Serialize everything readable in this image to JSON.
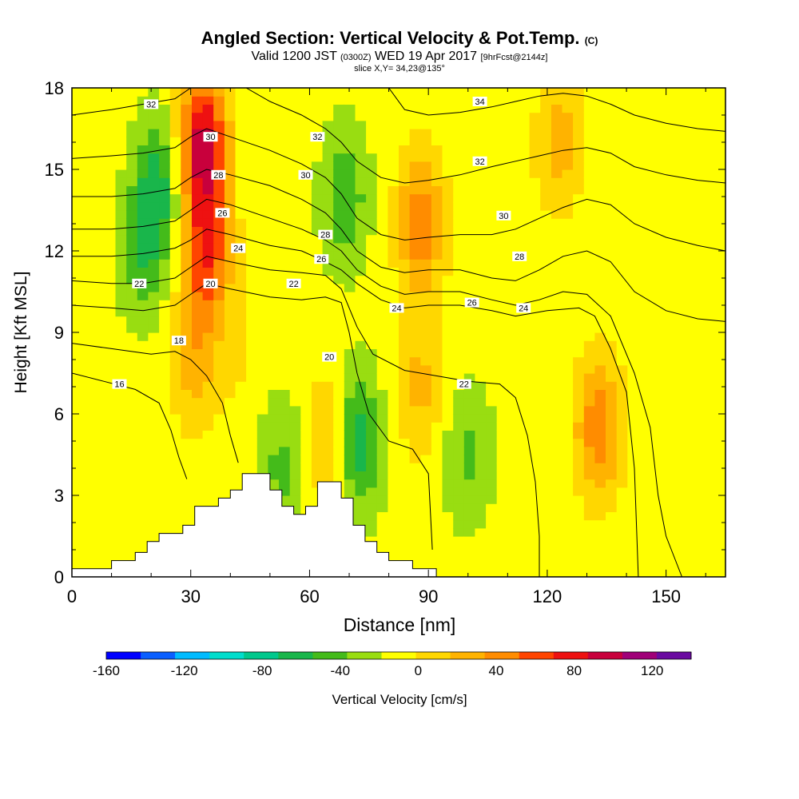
{
  "header": {
    "title": "Angled Section: Vertical Velocity & Pot.Temp.",
    "copyright": "(C)",
    "valid_prefix": "Valid 1200 JST",
    "valid_zulu": "(0300Z)",
    "valid_date": "WED 19 Apr 2017",
    "forecast": "[9hrFcst@2144z]",
    "slice": "slice X,Y= 34,23@135°"
  },
  "chart_data": {
    "type": "heatmap",
    "xlabel": "Distance [nm]",
    "ylabel": "Height [Kft MSL]",
    "xlim": [
      0,
      165
    ],
    "ylim": [
      0,
      18
    ],
    "x_ticks": [
      "0",
      "30",
      "60",
      "90",
      "120",
      "150"
    ],
    "x_tick_values": [
      0,
      30,
      60,
      90,
      120,
      150
    ],
    "y_ticks": [
      "0",
      "3",
      "6",
      "9",
      "12",
      "15",
      "18"
    ],
    "y_tick_values": [
      0,
      3,
      6,
      9,
      12,
      15,
      18
    ],
    "colorbar": {
      "label": "Vertical Velocity [cm/s]",
      "tick_labels": [
        "-160",
        "-120",
        "-80",
        "-40",
        "0",
        "40",
        "80",
        "120"
      ],
      "tick_values": [
        -160,
        -120,
        -80,
        -40,
        0,
        40,
        80,
        120
      ],
      "min": -160,
      "max": 140,
      "step": 20,
      "colors": [
        "#0000ff",
        "#0a5fff",
        "#00bbff",
        "#00ddcc",
        "#00c88c",
        "#19b64b",
        "#44bb1a",
        "#99dd11",
        "#ffff00",
        "#ffd700",
        "#ffb300",
        "#ff8c00",
        "#ff4500",
        "#ee1111",
        "#c8003c",
        "#a00078",
        "#6a0aa0"
      ]
    },
    "velocity_features": [
      {
        "x": 100,
        "y": 4.5,
        "value": -25
      },
      {
        "x": 18,
        "y": 12,
        "value": -35
      },
      {
        "x": 22,
        "y": 14.5,
        "value": -45
      },
      {
        "x": 69,
        "y": 14,
        "value": -35
      },
      {
        "x": 72,
        "y": 5,
        "value": -55
      },
      {
        "x": 53,
        "y": 4,
        "value": -25
      },
      {
        "x": 34,
        "y": 12,
        "value": 95
      },
      {
        "x": 33,
        "y": 16,
        "value": 130
      },
      {
        "x": 31,
        "y": 8,
        "value": 50
      },
      {
        "x": 88,
        "y": 13,
        "value": 75
      },
      {
        "x": 88,
        "y": 7,
        "value": 45
      },
      {
        "x": 133,
        "y": 5.5,
        "value": 75
      },
      {
        "x": 123,
        "y": 16,
        "value": 50
      },
      {
        "x": 65,
        "y": 5,
        "value": 45
      },
      {
        "x": 42,
        "y": 8,
        "value": 20
      },
      {
        "x": 8,
        "y": 2.5,
        "value": 5
      }
    ],
    "terrain": [
      [
        0,
        0.3
      ],
      [
        10,
        0.3
      ],
      [
        10,
        0.6
      ],
      [
        16,
        0.6
      ],
      [
        16,
        0.9
      ],
      [
        19,
        0.9
      ],
      [
        19,
        1.3
      ],
      [
        22,
        1.3
      ],
      [
        22,
        1.6
      ],
      [
        28,
        1.6
      ],
      [
        28,
        1.9
      ],
      [
        31,
        1.9
      ],
      [
        31,
        2.6
      ],
      [
        37,
        2.6
      ],
      [
        37,
        2.9
      ],
      [
        40,
        2.9
      ],
      [
        40,
        3.2
      ],
      [
        43,
        3.2
      ],
      [
        43,
        3.8
      ],
      [
        50,
        3.8
      ],
      [
        50,
        3.2
      ],
      [
        53,
        3.2
      ],
      [
        53,
        2.6
      ],
      [
        56,
        2.6
      ],
      [
        56,
        2.3
      ],
      [
        59,
        2.3
      ],
      [
        59,
        2.6
      ],
      [
        62,
        2.6
      ],
      [
        62,
        3.5
      ],
      [
        68,
        3.5
      ],
      [
        68,
        2.9
      ],
      [
        71,
        2.9
      ],
      [
        71,
        1.9
      ],
      [
        74,
        1.9
      ],
      [
        74,
        1.3
      ],
      [
        77,
        1.3
      ],
      [
        77,
        0.9
      ],
      [
        80,
        0.9
      ],
      [
        80,
        0.6
      ],
      [
        86,
        0.6
      ],
      [
        86,
        0.3
      ],
      [
        92,
        0.3
      ]
    ],
    "isentropes": [
      {
        "label": "16",
        "points": [
          [
            0,
            7.5
          ],
          [
            8,
            7.2
          ],
          [
            16,
            6.9
          ],
          [
            22,
            6.4
          ],
          [
            25,
            5.4
          ],
          [
            27,
            4.4
          ],
          [
            29,
            3.6
          ]
        ]
      },
      {
        "label": "18",
        "points": [
          [
            0,
            8.6
          ],
          [
            10,
            8.4
          ],
          [
            20,
            8.2
          ],
          [
            26,
            8.3
          ],
          [
            30,
            8.0
          ],
          [
            34,
            7.4
          ],
          [
            38,
            6.4
          ],
          [
            40,
            5.2
          ],
          [
            42,
            4.2
          ]
        ]
      },
      {
        "label": "20",
        "points": [
          [
            0,
            10.0
          ],
          [
            10,
            9.9
          ],
          [
            18,
            9.8
          ],
          [
            26,
            10.0
          ],
          [
            30,
            10.4
          ],
          [
            34,
            10.8
          ],
          [
            40,
            10.6
          ],
          [
            50,
            10.3
          ],
          [
            58,
            10.2
          ],
          [
            64,
            10.3
          ],
          [
            68,
            10.1
          ],
          [
            70,
            9.0
          ],
          [
            72,
            7.5
          ],
          [
            75,
            6.0
          ],
          [
            80,
            5.0
          ],
          [
            86,
            4.7
          ],
          [
            90,
            3.8
          ],
          [
            91,
            1.0
          ]
        ]
      },
      {
        "label": "22",
        "points": [
          [
            0,
            10.9
          ],
          [
            10,
            10.8
          ],
          [
            18,
            10.8
          ],
          [
            26,
            11.0
          ],
          [
            30,
            11.4
          ],
          [
            34,
            11.8
          ],
          [
            40,
            11.6
          ],
          [
            50,
            11.3
          ],
          [
            58,
            11.2
          ],
          [
            64,
            11.1
          ],
          [
            68,
            10.6
          ],
          [
            72,
            9.2
          ],
          [
            76,
            8.2
          ],
          [
            84,
            7.6
          ],
          [
            92,
            7.4
          ],
          [
            100,
            7.2
          ],
          [
            108,
            7.1
          ],
          [
            112,
            6.6
          ],
          [
            115,
            5.2
          ],
          [
            117,
            3.5
          ],
          [
            118,
            1.5
          ],
          [
            118,
            0.0
          ]
        ]
      },
      {
        "label": "24",
        "points": [
          [
            0,
            11.8
          ],
          [
            10,
            11.8
          ],
          [
            18,
            11.9
          ],
          [
            26,
            12.1
          ],
          [
            30,
            12.4
          ],
          [
            34,
            12.8
          ],
          [
            40,
            12.6
          ],
          [
            50,
            12.2
          ],
          [
            58,
            12.0
          ],
          [
            64,
            11.6
          ],
          [
            68,
            11.3
          ],
          [
            72,
            10.8
          ],
          [
            78,
            10.2
          ],
          [
            84,
            9.9
          ],
          [
            90,
            10.0
          ],
          [
            98,
            10.0
          ],
          [
            106,
            9.8
          ],
          [
            112,
            9.6
          ],
          [
            120,
            9.8
          ],
          [
            128,
            9.9
          ],
          [
            132,
            9.6
          ],
          [
            136,
            8.4
          ],
          [
            140,
            6.8
          ],
          [
            142,
            4.0
          ],
          [
            143,
            0.0
          ]
        ]
      },
      {
        "label": "26",
        "points": [
          [
            0,
            12.8
          ],
          [
            10,
            12.8
          ],
          [
            18,
            12.9
          ],
          [
            26,
            13.1
          ],
          [
            30,
            13.5
          ],
          [
            34,
            13.9
          ],
          [
            40,
            13.7
          ],
          [
            50,
            13.2
          ],
          [
            58,
            12.8
          ],
          [
            64,
            12.4
          ],
          [
            68,
            12.0
          ],
          [
            72,
            11.3
          ],
          [
            78,
            10.7
          ],
          [
            84,
            10.4
          ],
          [
            90,
            10.5
          ],
          [
            98,
            10.5
          ],
          [
            106,
            10.2
          ],
          [
            112,
            10.0
          ],
          [
            118,
            10.2
          ],
          [
            124,
            10.5
          ],
          [
            130,
            10.4
          ],
          [
            136,
            9.6
          ],
          [
            142,
            7.5
          ],
          [
            146,
            5.5
          ],
          [
            148,
            3.0
          ],
          [
            150,
            1.5
          ],
          [
            154,
            0.0
          ]
        ]
      },
      {
        "label": "28",
        "points": [
          [
            0,
            14.0
          ],
          [
            10,
            14.0
          ],
          [
            18,
            14.1
          ],
          [
            26,
            14.3
          ],
          [
            30,
            14.7
          ],
          [
            34,
            15.0
          ],
          [
            40,
            14.8
          ],
          [
            50,
            14.4
          ],
          [
            58,
            13.9
          ],
          [
            64,
            13.4
          ],
          [
            68,
            12.8
          ],
          [
            72,
            12.0
          ],
          [
            78,
            11.4
          ],
          [
            84,
            11.2
          ],
          [
            90,
            11.3
          ],
          [
            98,
            11.3
          ],
          [
            106,
            11.0
          ],
          [
            112,
            10.9
          ],
          [
            118,
            11.3
          ],
          [
            124,
            11.8
          ],
          [
            130,
            12.0
          ],
          [
            136,
            11.6
          ],
          [
            142,
            10.5
          ],
          [
            150,
            9.8
          ],
          [
            158,
            9.5
          ],
          [
            165,
            9.4
          ]
        ]
      },
      {
        "label": "30",
        "points": [
          [
            0,
            15.4
          ],
          [
            10,
            15.5
          ],
          [
            18,
            15.6
          ],
          [
            26,
            15.8
          ],
          [
            30,
            16.2
          ],
          [
            34,
            16.5
          ],
          [
            40,
            16.2
          ],
          [
            50,
            15.7
          ],
          [
            58,
            15.2
          ],
          [
            64,
            14.7
          ],
          [
            68,
            14.1
          ],
          [
            72,
            13.2
          ],
          [
            78,
            12.6
          ],
          [
            84,
            12.4
          ],
          [
            90,
            12.5
          ],
          [
            98,
            12.6
          ],
          [
            106,
            12.6
          ],
          [
            112,
            12.8
          ],
          [
            118,
            13.2
          ],
          [
            124,
            13.6
          ],
          [
            130,
            13.9
          ],
          [
            136,
            13.7
          ],
          [
            142,
            13.0
          ],
          [
            150,
            12.5
          ],
          [
            158,
            12.2
          ],
          [
            165,
            12.0
          ]
        ]
      },
      {
        "label": "32",
        "points": [
          [
            0,
            17.0
          ],
          [
            10,
            17.2
          ],
          [
            18,
            17.4
          ],
          [
            26,
            17.6
          ],
          [
            30,
            18.0
          ]
        ]
      },
      {
        "label": "32",
        "points": [
          [
            44,
            18.0
          ],
          [
            50,
            17.5
          ],
          [
            58,
            17.0
          ],
          [
            64,
            16.5
          ],
          [
            68,
            16.0
          ],
          [
            72,
            15.3
          ],
          [
            78,
            14.7
          ],
          [
            84,
            14.5
          ],
          [
            90,
            14.6
          ],
          [
            98,
            14.8
          ],
          [
            106,
            15.1
          ],
          [
            112,
            15.3
          ],
          [
            118,
            15.5
          ],
          [
            124,
            15.7
          ],
          [
            130,
            15.8
          ],
          [
            136,
            15.6
          ],
          [
            142,
            15.1
          ],
          [
            150,
            14.8
          ],
          [
            158,
            14.6
          ],
          [
            165,
            14.5
          ]
        ]
      },
      {
        "label": "34",
        "points": [
          [
            80,
            18.0
          ],
          [
            84,
            17.2
          ],
          [
            90,
            17.0
          ],
          [
            98,
            17.1
          ],
          [
            106,
            17.3
          ],
          [
            112,
            17.5
          ],
          [
            118,
            17.7
          ],
          [
            124,
            17.8
          ],
          [
            130,
            17.7
          ],
          [
            136,
            17.4
          ],
          [
            142,
            17.0
          ],
          [
            150,
            16.7
          ],
          [
            158,
            16.5
          ],
          [
            165,
            16.4
          ]
        ]
      }
    ],
    "contour_labels": [
      {
        "text": "16",
        "x": 12,
        "y": 7.1
      },
      {
        "text": "18",
        "x": 27,
        "y": 8.7
      },
      {
        "text": "20",
        "x": 35,
        "y": 10.8
      },
      {
        "text": "22",
        "x": 17,
        "y": 10.8
      },
      {
        "text": "22",
        "x": 56,
        "y": 10.8
      },
      {
        "text": "24",
        "x": 42,
        "y": 12.1
      },
      {
        "text": "26",
        "x": 38,
        "y": 13.4
      },
      {
        "text": "28",
        "x": 37,
        "y": 14.8
      },
      {
        "text": "30",
        "x": 35,
        "y": 16.2
      },
      {
        "text": "32",
        "x": 20,
        "y": 17.4
      },
      {
        "text": "32",
        "x": 62,
        "y": 16.2
      },
      {
        "text": "30",
        "x": 59,
        "y": 14.8
      },
      {
        "text": "28",
        "x": 64,
        "y": 12.6
      },
      {
        "text": "26",
        "x": 63,
        "y": 11.7
      },
      {
        "text": "20",
        "x": 65,
        "y": 8.1
      },
      {
        "text": "24",
        "x": 82,
        "y": 9.9
      },
      {
        "text": "22",
        "x": 99,
        "y": 7.1
      },
      {
        "text": "24",
        "x": 114,
        "y": 9.9
      },
      {
        "text": "26",
        "x": 101,
        "y": 10.1
      },
      {
        "text": "28",
        "x": 113,
        "y": 11.8
      },
      {
        "text": "30",
        "x": 109,
        "y": 13.3
      },
      {
        "text": "32",
        "x": 103,
        "y": 15.3
      },
      {
        "text": "34",
        "x": 103,
        "y": 17.5
      }
    ]
  }
}
